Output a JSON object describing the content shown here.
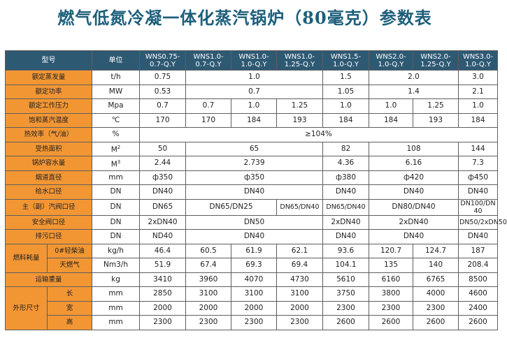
{
  "title": "燃气低氮冷凝一体化蒸汽锅炉（80毫克）参数表",
  "header": {
    "model": "型号",
    "unit": "单位",
    "models": [
      [
        "WNS0.75-",
        "0.7-Q.Y"
      ],
      [
        "WNS1.0-",
        "0.7-Q.Y"
      ],
      [
        "WNS1.0-",
        "1.0-Q.Y"
      ],
      [
        "WNS1.0-",
        "1.25-Q.Y"
      ],
      [
        "WNS1.5-",
        "1.0-Q.Y"
      ],
      [
        "WNS2.0-",
        "1.0-Q.Y"
      ],
      [
        "WNS2.0-",
        "1.25-Q.Y"
      ],
      [
        "WNS3.0-",
        "1.0-Q.Y"
      ]
    ]
  },
  "rows": {
    "evaporation": {
      "label": "额定蒸发量",
      "unit": "t/h",
      "v": [
        "0.75",
        "1.0",
        "1.5",
        "2.0",
        "3.0"
      ]
    },
    "power": {
      "label": "额定功率",
      "unit": "MW",
      "v": [
        "0.53",
        "0.7",
        "1.05",
        "1.4",
        "2.1"
      ]
    },
    "pressure": {
      "label": "额定工作压力",
      "unit": "Mpa",
      "v": [
        "0.7",
        "0.7",
        "1.0",
        "1.25",
        "1.0",
        "1.0",
        "1.25",
        "1.0"
      ]
    },
    "steam_temp": {
      "label": "饱和蒸汽温度",
      "unit": "℃",
      "v": [
        "170",
        "170",
        "184",
        "193",
        "184",
        "184",
        "193",
        "184"
      ]
    },
    "efficiency": {
      "label": "热效率（气/油）",
      "unit": "%",
      "v": [
        "≥104%"
      ]
    },
    "heating_area": {
      "label": "受热面积",
      "unit": "M",
      "unit_sup": "2",
      "v": [
        "50",
        "65",
        "82",
        "108",
        "144"
      ]
    },
    "water_volume": {
      "label": "锅炉容水量",
      "unit": "M",
      "unit_sup": "3",
      "v": [
        "2.44",
        "2.739",
        "4.36",
        "6.16",
        "7.3"
      ]
    },
    "flue_diameter": {
      "label": "烟道直径",
      "unit": "mm",
      "v": [
        "ф350",
        "ф350",
        "ф380",
        "ф420",
        "ф450"
      ]
    },
    "feed_water": {
      "label": "给水口径",
      "unit": "DN",
      "v": [
        "DN40",
        "DN40",
        "DN40",
        "DN40",
        "DN40"
      ]
    },
    "steam_outlet": {
      "label": "主（副）汽阀口径",
      "unit": "DN",
      "v": [
        "DN65",
        "DN65/DN25",
        "DN65/DN40",
        "DN65/DN40",
        "DN80/DN40",
        "DN100/DN40"
      ]
    },
    "safety_valve": {
      "label": "安全阀口径",
      "unit": "DN",
      "v": [
        "2xDN40",
        "DN50",
        "2xDN40",
        "2xDN40",
        "DN50/2xDN50"
      ]
    },
    "blowdown": {
      "label": "排污口径",
      "unit": "DN",
      "v": [
        "ND40",
        "DN40",
        "DN40",
        "DN40",
        "DN40"
      ]
    },
    "fuel": {
      "label": "燃料耗量",
      "diesel": {
        "label": "0#轻柴油",
        "unit": "kg/h",
        "v": [
          "46.4",
          "60.5",
          "61.9",
          "62.1",
          "93.6",
          "120.7",
          "124.7",
          "187"
        ]
      },
      "gas": {
        "label": "天燃气",
        "unit": "Nm3/h",
        "v": [
          "51.9",
          "67.4",
          "69.3",
          "69.4",
          "104.1",
          "135",
          "140",
          "208.4"
        ]
      }
    },
    "weight": {
      "label": "运输重量",
      "unit": "kg",
      "v": [
        "3410",
        "3960",
        "4070",
        "4730",
        "5610",
        "6160",
        "6765",
        "8500"
      ]
    },
    "dimensions": {
      "label": "外形尺寸",
      "length": {
        "label": "长",
        "unit": "mm",
        "v": [
          "2850",
          "3100",
          "3100",
          "3100",
          "3750",
          "3800",
          "4000",
          "4600"
        ]
      },
      "width": {
        "label": "宽",
        "unit": "mm",
        "v": [
          "2000",
          "2000",
          "2000",
          "2000",
          "2300",
          "2300",
          "2300",
          "2400"
        ]
      },
      "height": {
        "label": "高",
        "unit": "mm",
        "v": [
          "2300",
          "2300",
          "2300",
          "2300",
          "2600",
          "2600",
          "2600",
          "2600"
        ]
      }
    }
  }
}
